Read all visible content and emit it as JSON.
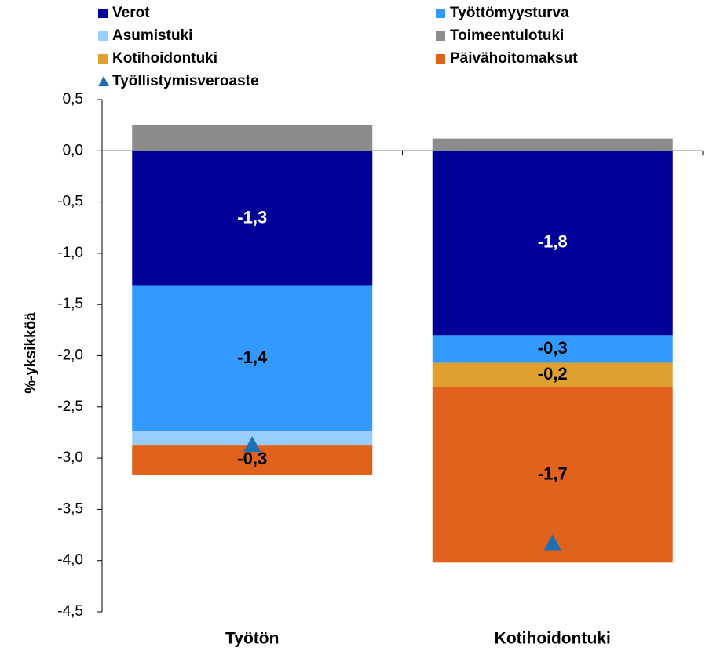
{
  "chart_data": {
    "type": "stacked_bar",
    "y_label": "%-yksikköä",
    "categories": [
      "Työtön",
      "Kotihoidontuki"
    ],
    "series": [
      {
        "name": "Verot",
        "color": "#000099",
        "values": [
          -1.32,
          -1.8
        ],
        "value_labels": [
          "-1,3",
          "-1,8"
        ]
      },
      {
        "name": "Työttömyysturva",
        "color": "#3399ff",
        "values": [
          -1.42,
          -0.27
        ],
        "value_labels": [
          "-1,4",
          "-0,3"
        ]
      },
      {
        "name": "Asumistuki",
        "color": "#99ccff",
        "values": [
          -0.13,
          0
        ],
        "value_labels": [
          null,
          null
        ]
      },
      {
        "name": "Toimeentulotuki",
        "color": "#8c8c8c",
        "values": [
          0.25,
          0.12
        ],
        "value_labels": [
          null,
          null
        ]
      },
      {
        "name": "Kotihoidontuki",
        "color": "#e0a030",
        "values": [
          0,
          -0.24
        ],
        "value_labels": [
          null,
          "-0,2"
        ]
      },
      {
        "name": "Päivähoitomaksut",
        "color": "#e0621c",
        "values": [
          -0.29,
          -1.71
        ],
        "value_labels": [
          "-0,3",
          "-1,7"
        ]
      },
      {
        "name": "Työllistymisveroaste",
        "color": "#1f6fb4",
        "type": "marker",
        "values": [
          -2.87,
          -3.83
        ]
      }
    ],
    "ylim": [
      -4.5,
      0.5
    ],
    "yticks": [
      {
        "value": 0.5,
        "label": "0,5"
      },
      {
        "value": 0,
        "label": "0,0"
      },
      {
        "value": -0.5,
        "label": "-0,5"
      },
      {
        "value": -1,
        "label": "-1,0"
      },
      {
        "value": -1.5,
        "label": "-1,5"
      },
      {
        "value": -2,
        "label": "-2,0"
      },
      {
        "value": -2.5,
        "label": "-2,5"
      },
      {
        "value": -3,
        "label": "-3,0"
      },
      {
        "value": -3.5,
        "label": "-3,5"
      },
      {
        "value": -4,
        "label": "-4,0"
      },
      {
        "value": -4.5,
        "label": "-4,5"
      }
    ]
  }
}
